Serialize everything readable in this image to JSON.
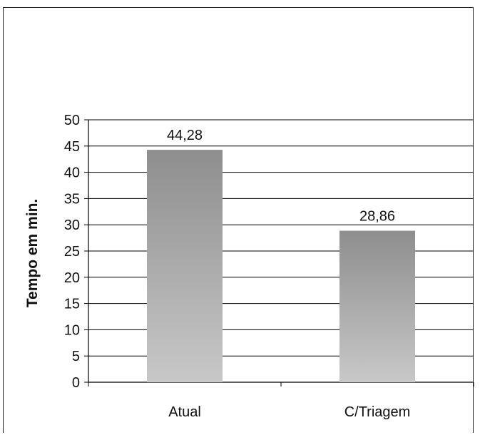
{
  "chart_data": {
    "type": "bar",
    "categories": [
      "Atual",
      "C/Triagem"
    ],
    "values": [
      44.28,
      28.86
    ],
    "data_labels": [
      "44,28",
      "28,86"
    ],
    "title": "",
    "xlabel": "",
    "ylabel": "Tempo em min.",
    "ylim": [
      0,
      50
    ],
    "yticks": [
      0,
      5,
      10,
      15,
      20,
      25,
      30,
      35,
      40,
      45,
      50
    ],
    "grid": true,
    "colors": {
      "bar_top": "#8e8e8e",
      "bar_bottom": "#c8c8c8",
      "grid": "#000000"
    }
  }
}
